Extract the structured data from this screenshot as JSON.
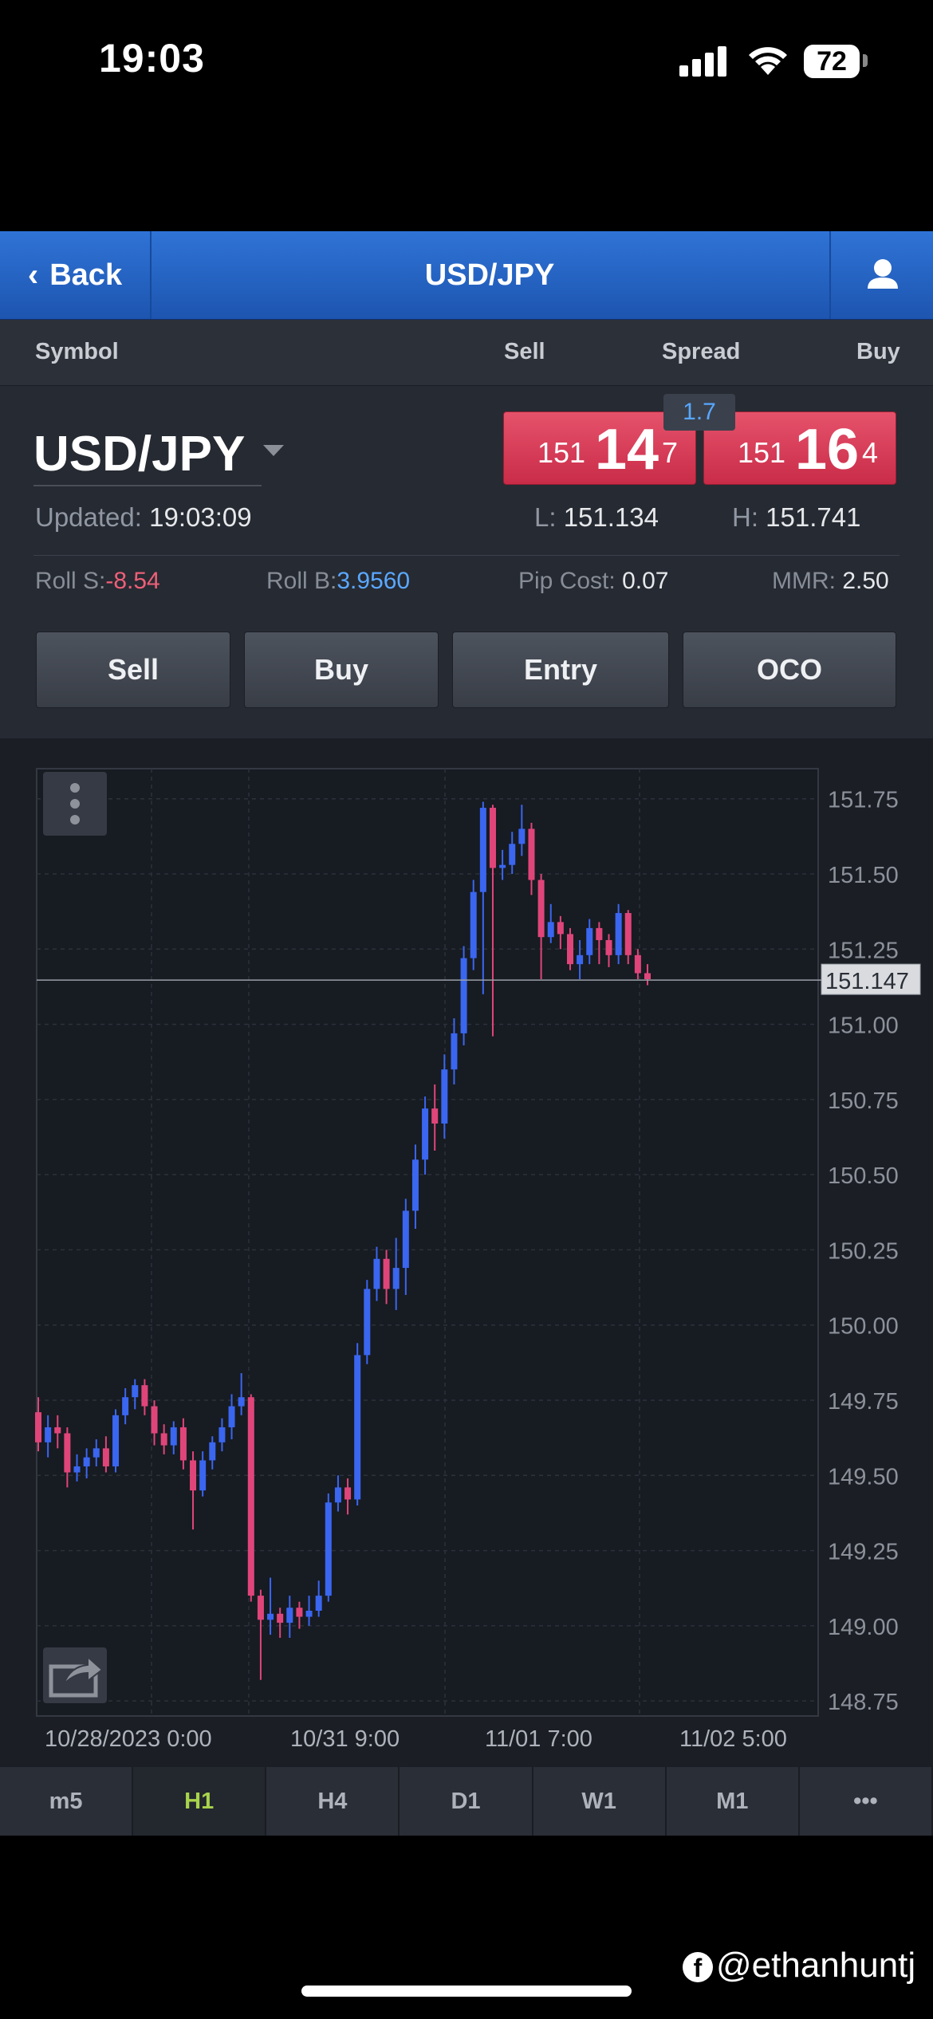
{
  "status_bar": {
    "time": "19:03",
    "battery": "72"
  },
  "nav": {
    "back_label": "Back",
    "title": "USD/JPY"
  },
  "columns": {
    "symbol": "Symbol",
    "sell": "Sell",
    "spread": "Spread",
    "buy": "Buy"
  },
  "symbol": {
    "name": "USD/JPY",
    "updated_label": "Updated:",
    "updated_time": "19:03:09",
    "low_label": "L:",
    "low": "151.134",
    "high_label": "H:",
    "high": "151.741",
    "spread": "1.7",
    "sell": {
      "small": "151",
      "big": "14",
      "tail": "7"
    },
    "buy": {
      "small": "151",
      "big": "16",
      "tail": "4"
    },
    "roll_s_label": "Roll S:",
    "roll_s": "-8.54",
    "roll_b_label": "Roll B:",
    "roll_b": "3.9560",
    "pip_cost_label": "Pip Cost:",
    "pip_cost": "0.07",
    "mmr_label": "MMR:",
    "mmr": "2.50"
  },
  "actions": {
    "sell": "Sell",
    "buy": "Buy",
    "entry": "Entry",
    "oco": "OCO"
  },
  "chart_data": {
    "type": "candlestick",
    "ylim": [
      148.7,
      151.85
    ],
    "y_ticks": [
      "151.75",
      "151.50",
      "151.25",
      "151.00",
      "150.75",
      "150.50",
      "150.25",
      "150.00",
      "149.75",
      "149.50",
      "149.25",
      "149.00",
      "148.75"
    ],
    "x_ticks": [
      "10/28/2023 0:00",
      "10/31 9:00",
      "11/01 7:00",
      "11/02 5:00"
    ],
    "current_price": "151.147",
    "current_value": 151.147,
    "colors": {
      "up": "#3a66f0",
      "down": "#e0457a"
    },
    "candles": [
      [
        149.71,
        149.61,
        149.76,
        149.58
      ],
      [
        149.61,
        149.66,
        149.7,
        149.56
      ],
      [
        149.66,
        149.64,
        149.7,
        149.59
      ],
      [
        149.64,
        149.51,
        149.66,
        149.46
      ],
      [
        149.51,
        149.53,
        149.57,
        149.48
      ],
      [
        149.53,
        149.56,
        149.59,
        149.49
      ],
      [
        149.56,
        149.59,
        149.62,
        149.53
      ],
      [
        149.59,
        149.53,
        149.63,
        149.51
      ],
      [
        149.53,
        149.7,
        149.72,
        149.51
      ],
      [
        149.7,
        149.76,
        149.79,
        149.67
      ],
      [
        149.76,
        149.8,
        149.82,
        149.72
      ],
      [
        149.8,
        149.73,
        149.82,
        149.7
      ],
      [
        149.73,
        149.64,
        149.75,
        149.6
      ],
      [
        149.64,
        149.6,
        149.67,
        149.57
      ],
      [
        149.6,
        149.66,
        149.68,
        149.57
      ],
      [
        149.66,
        149.55,
        149.69,
        149.52
      ],
      [
        149.55,
        149.45,
        149.58,
        149.32
      ],
      [
        149.45,
        149.55,
        149.58,
        149.43
      ],
      [
        149.55,
        149.61,
        149.63,
        149.52
      ],
      [
        149.61,
        149.66,
        149.69,
        149.58
      ],
      [
        149.66,
        149.73,
        149.77,
        149.62
      ],
      [
        149.73,
        149.76,
        149.84,
        149.7
      ],
      [
        149.76,
        149.1,
        149.77,
        149.08
      ],
      [
        149.1,
        149.02,
        149.12,
        148.82
      ],
      [
        149.02,
        149.04,
        149.16,
        148.97
      ],
      [
        149.04,
        149.01,
        149.06,
        148.96
      ],
      [
        149.01,
        149.06,
        149.1,
        148.96
      ],
      [
        149.06,
        149.03,
        149.08,
        148.99
      ],
      [
        149.03,
        149.05,
        149.1,
        149.0
      ],
      [
        149.05,
        149.1,
        149.15,
        149.03
      ],
      [
        149.1,
        149.41,
        149.44,
        149.08
      ],
      [
        149.41,
        149.46,
        149.5,
        149.38
      ],
      [
        149.46,
        149.42,
        149.49,
        149.37
      ],
      [
        149.42,
        149.9,
        149.94,
        149.4
      ],
      [
        149.9,
        150.12,
        150.15,
        149.87
      ],
      [
        150.12,
        150.22,
        150.26,
        150.08
      ],
      [
        150.22,
        150.12,
        150.25,
        150.07
      ],
      [
        150.12,
        150.19,
        150.29,
        150.05
      ],
      [
        150.19,
        150.38,
        150.42,
        150.1
      ],
      [
        150.38,
        150.55,
        150.6,
        150.32
      ],
      [
        150.55,
        150.72,
        150.76,
        150.5
      ],
      [
        150.72,
        150.67,
        150.8,
        150.58
      ],
      [
        150.67,
        150.85,
        150.9,
        150.62
      ],
      [
        150.85,
        150.97,
        151.02,
        150.8
      ],
      [
        150.97,
        151.22,
        151.26,
        150.93
      ],
      [
        151.22,
        151.44,
        151.48,
        151.18
      ],
      [
        151.44,
        151.72,
        151.74,
        151.1
      ],
      [
        151.72,
        151.52,
        151.73,
        150.96
      ],
      [
        151.52,
        151.53,
        151.58,
        151.48
      ],
      [
        151.53,
        151.6,
        151.64,
        151.5
      ],
      [
        151.6,
        151.65,
        151.73,
        151.56
      ],
      [
        151.65,
        151.48,
        151.67,
        151.43
      ],
      [
        151.48,
        151.29,
        151.5,
        151.15
      ],
      [
        151.29,
        151.34,
        151.4,
        151.27
      ],
      [
        151.34,
        151.3,
        151.36,
        151.25
      ],
      [
        151.3,
        151.2,
        151.32,
        151.18
      ],
      [
        151.2,
        151.23,
        151.28,
        151.15
      ],
      [
        151.23,
        151.32,
        151.35,
        151.2
      ],
      [
        151.32,
        151.28,
        151.34,
        151.2
      ],
      [
        151.28,
        151.23,
        151.3,
        151.19
      ],
      [
        151.23,
        151.37,
        151.4,
        151.2
      ],
      [
        151.37,
        151.23,
        151.38,
        151.2
      ],
      [
        151.23,
        151.17,
        151.25,
        151.15
      ],
      [
        151.17,
        151.15,
        151.2,
        151.13
      ]
    ]
  },
  "tabs": [
    {
      "label": "m5",
      "active": false
    },
    {
      "label": "H1",
      "active": true
    },
    {
      "label": "H4",
      "active": false
    },
    {
      "label": "D1",
      "active": false
    },
    {
      "label": "W1",
      "active": false
    },
    {
      "label": "M1",
      "active": false
    },
    {
      "label": "•••",
      "active": false
    }
  ],
  "watermark": "@ethanhuntj",
  "watermark_logo": "f"
}
